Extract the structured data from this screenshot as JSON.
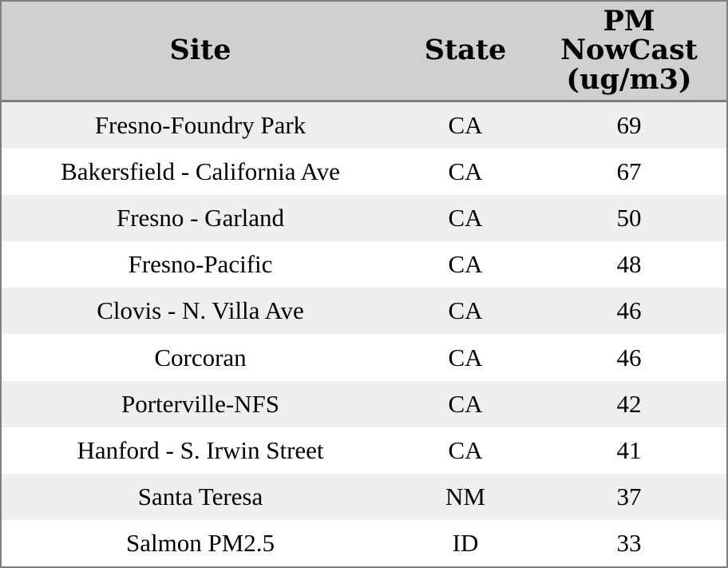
{
  "table": {
    "columns": [
      {
        "key": "site",
        "label": "Site"
      },
      {
        "key": "state",
        "label": "State"
      },
      {
        "key": "pm_nowcast",
        "label": "PM\nNowCast\n(ug/m3)"
      }
    ],
    "rows": [
      {
        "site": "Fresno-Foundry Park",
        "state": "CA",
        "pm_nowcast": "69"
      },
      {
        "site": "Bakersfield - California Ave",
        "state": "CA",
        "pm_nowcast": "67"
      },
      {
        "site": "Fresno - Garland",
        "state": "CA",
        "pm_nowcast": "50"
      },
      {
        "site": "Fresno-Pacific",
        "state": "CA",
        "pm_nowcast": "48"
      },
      {
        "site": "Clovis - N. Villa Ave",
        "state": "CA",
        "pm_nowcast": "46"
      },
      {
        "site": "Corcoran",
        "state": "CA",
        "pm_nowcast": "46"
      },
      {
        "site": "Porterville-NFS",
        "state": "CA",
        "pm_nowcast": "42"
      },
      {
        "site": "Hanford - S. Irwin Street",
        "state": "CA",
        "pm_nowcast": "41"
      },
      {
        "site": "Santa Teresa",
        "state": "NM",
        "pm_nowcast": "37"
      },
      {
        "site": "Salmon PM2.5",
        "state": "ID",
        "pm_nowcast": "33"
      }
    ]
  },
  "colors": {
    "header_bg": "#d0d0d0",
    "border": "#808080",
    "row_alt_bg": "#efefef",
    "row_bg": "#ffffff",
    "text": "#000000"
  },
  "chart_data": {
    "type": "table",
    "title": "",
    "columns": [
      "Site",
      "State",
      "PM NowCast (ug/m3)"
    ],
    "rows": [
      [
        "Fresno-Foundry Park",
        "CA",
        69
      ],
      [
        "Bakersfield - California Ave",
        "CA",
        67
      ],
      [
        "Fresno - Garland",
        "CA",
        50
      ],
      [
        "Fresno-Pacific",
        "CA",
        48
      ],
      [
        "Clovis - N. Villa Ave",
        "CA",
        46
      ],
      [
        "Corcoran",
        "CA",
        46
      ],
      [
        "Porterville-NFS",
        "CA",
        42
      ],
      [
        "Hanford - S. Irwin Street",
        "CA",
        41
      ],
      [
        "Santa Teresa",
        "NM",
        37
      ],
      [
        "Salmon PM2.5",
        "ID",
        33
      ]
    ]
  }
}
